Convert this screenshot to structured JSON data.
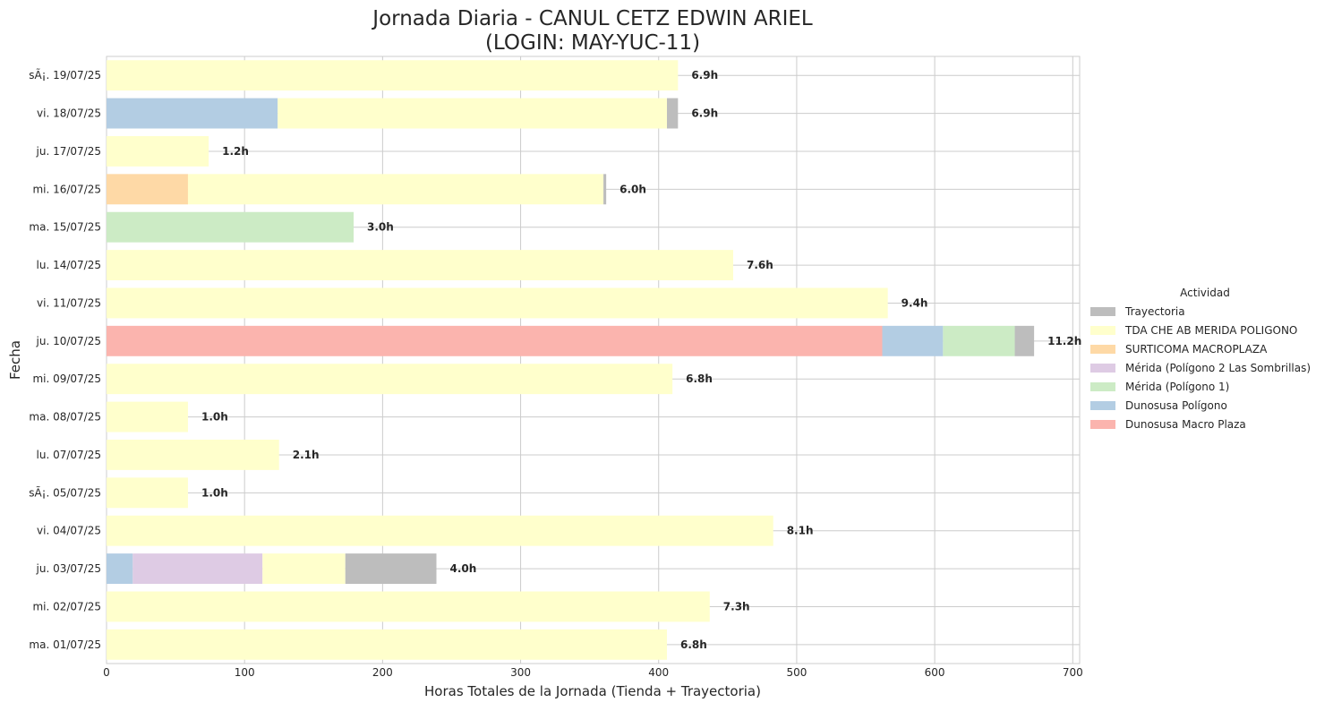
{
  "chart_data": {
    "type": "bar",
    "orientation": "horizontal",
    "stacked": true,
    "title_line1": "Jornada Diaria - CANUL CETZ EDWIN ARIEL",
    "title_line2": "(LOGIN: MAY-YUC-11)",
    "xlabel": "Horas Totales de la Jornada (Tienda + Trayectoria)",
    "ylabel": "Fecha",
    "xlim": [
      0,
      705
    ],
    "xticks": [
      0,
      100,
      200,
      300,
      400,
      500,
      600,
      700
    ],
    "grid": true,
    "legend": {
      "title": "Actividad",
      "placement": "center-right",
      "items": [
        {
          "name": "Trayectoria",
          "color": "#bdbdbd"
        },
        {
          "name": "TDA CHE AB MERIDA POLIGONO",
          "color": "#ffffcc"
        },
        {
          "name": "SURTICOMA MACROPLAZA",
          "color": "#fed9a6"
        },
        {
          "name": "Mérida (Polígono 2 Las Sombrillas)",
          "color": "#decbe4"
        },
        {
          "name": "Mérida (Polígono 1)",
          "color": "#ccebc5"
        },
        {
          "name": "Dunosusa Polígono",
          "color": "#b3cde3"
        },
        {
          "name": "Dunosusa Macro Plaza",
          "color": "#fbb4ae"
        }
      ]
    },
    "categories": [
      "sÃ¡. 19/07/25",
      "vi. 18/07/25",
      "ju. 17/07/25",
      "mi. 16/07/25",
      "ma. 15/07/25",
      "lu. 14/07/25",
      "vi. 11/07/25",
      "ju. 10/07/25",
      "mi. 09/07/25",
      "ma. 08/07/25",
      "lu. 07/07/25",
      "sÃ¡. 05/07/25",
      "vi. 04/07/25",
      "ju. 03/07/25",
      "mi. 02/07/25",
      "ma. 01/07/25"
    ],
    "rows": [
      {
        "date": "sÃ¡. 19/07/25",
        "total_label": "6.9h",
        "segments": [
          {
            "activity": "TDA CHE AB MERIDA POLIGONO",
            "value": 414
          }
        ]
      },
      {
        "date": "vi. 18/07/25",
        "total_label": "6.9h",
        "segments": [
          {
            "activity": "Dunosusa Polígono",
            "value": 124
          },
          {
            "activity": "TDA CHE AB MERIDA POLIGONO",
            "value": 282
          },
          {
            "activity": "Trayectoria",
            "value": 8
          }
        ]
      },
      {
        "date": "ju. 17/07/25",
        "total_label": "1.2h",
        "segments": [
          {
            "activity": "TDA CHE AB MERIDA POLIGONO",
            "value": 74
          }
        ]
      },
      {
        "date": "mi. 16/07/25",
        "total_label": "6.0h",
        "segments": [
          {
            "activity": "SURTICOMA MACROPLAZA",
            "value": 59
          },
          {
            "activity": "TDA CHE AB MERIDA POLIGONO",
            "value": 301
          },
          {
            "activity": "Trayectoria",
            "value": 2
          }
        ]
      },
      {
        "date": "ma. 15/07/25",
        "total_label": "3.0h",
        "segments": [
          {
            "activity": "Mérida (Polígono 1)",
            "value": 179
          }
        ]
      },
      {
        "date": "lu. 14/07/25",
        "total_label": "7.6h",
        "segments": [
          {
            "activity": "TDA CHE AB MERIDA POLIGONO",
            "value": 454
          }
        ]
      },
      {
        "date": "vi. 11/07/25",
        "total_label": "9.4h",
        "segments": [
          {
            "activity": "TDA CHE AB MERIDA POLIGONO",
            "value": 566
          }
        ]
      },
      {
        "date": "ju. 10/07/25",
        "total_label": "11.2h",
        "segments": [
          {
            "activity": "Dunosusa Macro Plaza",
            "value": 562
          },
          {
            "activity": "Dunosusa Polígono",
            "value": 44
          },
          {
            "activity": "Mérida (Polígono 1)",
            "value": 52
          },
          {
            "activity": "Trayectoria",
            "value": 14
          }
        ]
      },
      {
        "date": "mi. 09/07/25",
        "total_label": "6.8h",
        "segments": [
          {
            "activity": "TDA CHE AB MERIDA POLIGONO",
            "value": 410
          }
        ]
      },
      {
        "date": "ma. 08/07/25",
        "total_label": "1.0h",
        "segments": [
          {
            "activity": "TDA CHE AB MERIDA POLIGONO",
            "value": 59
          }
        ]
      },
      {
        "date": "lu. 07/07/25",
        "total_label": "2.1h",
        "segments": [
          {
            "activity": "TDA CHE AB MERIDA POLIGONO",
            "value": 125
          }
        ]
      },
      {
        "date": "sÃ¡. 05/07/25",
        "total_label": "1.0h",
        "segments": [
          {
            "activity": "TDA CHE AB MERIDA POLIGONO",
            "value": 59
          }
        ]
      },
      {
        "date": "vi. 04/07/25",
        "total_label": "8.1h",
        "segments": [
          {
            "activity": "TDA CHE AB MERIDA POLIGONO",
            "value": 483
          }
        ]
      },
      {
        "date": "ju. 03/07/25",
        "total_label": "4.0h",
        "segments": [
          {
            "activity": "Dunosusa Polígono",
            "value": 19
          },
          {
            "activity": "Mérida (Polígono 2 Las Sombrillas)",
            "value": 94
          },
          {
            "activity": "TDA CHE AB MERIDA POLIGONO",
            "value": 60
          },
          {
            "activity": "Trayectoria",
            "value": 66
          }
        ]
      },
      {
        "date": "mi. 02/07/25",
        "total_label": "7.3h",
        "segments": [
          {
            "activity": "TDA CHE AB MERIDA POLIGONO",
            "value": 437
          }
        ]
      },
      {
        "date": "ma. 01/07/25",
        "total_label": "6.8h",
        "segments": [
          {
            "activity": "TDA CHE AB MERIDA POLIGONO",
            "value": 406
          }
        ]
      }
    ]
  }
}
